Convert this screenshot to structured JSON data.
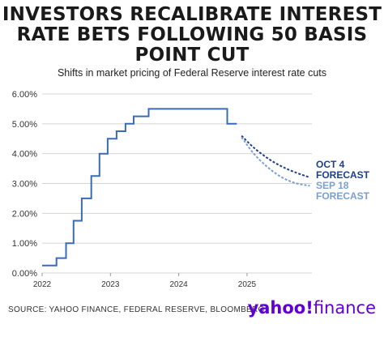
{
  "title_lines": [
    "INVESTORS RECALIBRATE INTEREST",
    "RATE BETS FOLLOWING 50 BASIS",
    "POINT CUT"
  ],
  "subtitle": "Shifts in market pricing of Federal Reserve interest rate cuts",
  "source": "SOURCE: YAHOO FINANCE, FEDERAL RESERVE, BLOOMBERG",
  "brand": {
    "yahoo": "yahoo!",
    "finance": "finance"
  },
  "colors": {
    "actual": "#3a6cb5",
    "oct4": "#1c3f8c",
    "sep18": "#7b9fd0",
    "grid": "#d4d4d4",
    "brand": "#6001d2"
  },
  "chart_data": {
    "type": "line",
    "title": "",
    "xlabel": "",
    "ylabel": "",
    "xlim": [
      2022.0,
      2025.95
    ],
    "ylim": [
      0,
      6
    ],
    "grid": true,
    "y_ticks": [
      "0.00%",
      "1.00%",
      "2.00%",
      "3.00%",
      "4.00%",
      "5.00%",
      "6.00%"
    ],
    "x_ticks": [
      {
        "label": "2022",
        "x": 2022
      },
      {
        "label": "2023",
        "x": 2023
      },
      {
        "label": "2024",
        "x": 2024
      },
      {
        "label": "2025",
        "x": 2025
      }
    ],
    "series": [
      {
        "name": "",
        "style": "step",
        "points": [
          [
            2022.0,
            0.25
          ],
          [
            2022.21,
            0.25
          ],
          [
            2022.21,
            0.5
          ],
          [
            2022.35,
            0.5
          ],
          [
            2022.35,
            1.0
          ],
          [
            2022.46,
            1.0
          ],
          [
            2022.46,
            1.75
          ],
          [
            2022.58,
            1.75
          ],
          [
            2022.58,
            2.5
          ],
          [
            2022.72,
            2.5
          ],
          [
            2022.72,
            3.25
          ],
          [
            2022.84,
            3.25
          ],
          [
            2022.84,
            4.0
          ],
          [
            2022.96,
            4.0
          ],
          [
            2022.96,
            4.5
          ],
          [
            2023.09,
            4.5
          ],
          [
            2023.09,
            4.75
          ],
          [
            2023.22,
            4.75
          ],
          [
            2023.22,
            5.0
          ],
          [
            2023.34,
            5.0
          ],
          [
            2023.34,
            5.25
          ],
          [
            2023.56,
            5.25
          ],
          [
            2023.56,
            5.5
          ],
          [
            2024.71,
            5.5
          ],
          [
            2024.71,
            5.0
          ],
          [
            2024.85,
            5.0
          ]
        ]
      },
      {
        "name": "OCT 4 FORECAST",
        "style": "dashed",
        "points": [
          [
            2024.92,
            4.6
          ],
          [
            2025.1,
            4.2
          ],
          [
            2025.3,
            3.85
          ],
          [
            2025.5,
            3.58
          ],
          [
            2025.7,
            3.38
          ],
          [
            2025.92,
            3.2
          ]
        ]
      },
      {
        "name": "SEP 18 FORECAST",
        "style": "dashed",
        "points": [
          [
            2024.92,
            4.55
          ],
          [
            2025.1,
            4.0
          ],
          [
            2025.3,
            3.55
          ],
          [
            2025.5,
            3.22
          ],
          [
            2025.7,
            3.02
          ],
          [
            2025.92,
            2.92
          ]
        ]
      }
    ],
    "annotations": [
      {
        "text_lines": [
          "OCT 4",
          "FORECAST"
        ],
        "series": "OCT 4 FORECAST"
      },
      {
        "text_lines": [
          "SEP 18",
          "FORECAST"
        ],
        "series": "SEP 18 FORECAST"
      }
    ]
  }
}
